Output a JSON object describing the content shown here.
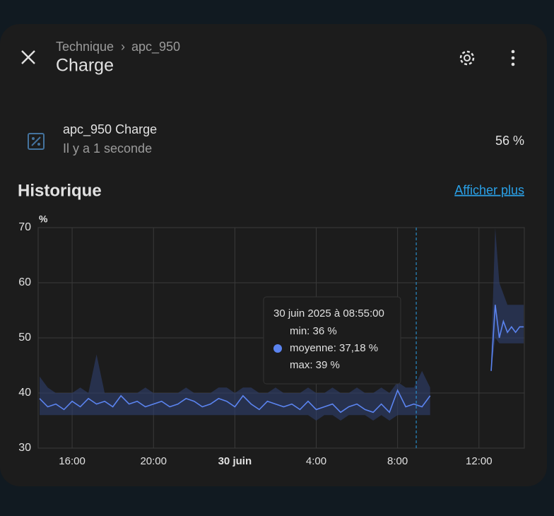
{
  "header": {
    "breadcrumb": [
      "Technique",
      "apc_950"
    ],
    "title": "Charge"
  },
  "entity": {
    "name": "apc_950 Charge",
    "last_changed": "Il y a 1 seconde",
    "state": "56 %"
  },
  "history": {
    "title": "Historique",
    "link": "Afficher plus"
  },
  "chart_data": {
    "type": "line",
    "ylabel": "%",
    "xlim": [
      14.33,
      38.23
    ],
    "xticks": [
      {
        "value": 16,
        "label": "16:00"
      },
      {
        "value": 20,
        "label": "20:00"
      },
      {
        "value": 24,
        "label": "30 juin"
      },
      {
        "value": 28,
        "label": "4:00"
      },
      {
        "value": 32,
        "label": "8:00"
      },
      {
        "value": 36,
        "label": "12:00"
      }
    ],
    "ylim": [
      30,
      70
    ],
    "yticks": [
      30,
      40,
      50,
      60,
      70
    ],
    "grid": true,
    "x": [
      14.4,
      14.8,
      15.2,
      15.6,
      16.0,
      16.4,
      16.8,
      17.2,
      17.6,
      18.0,
      18.4,
      18.8,
      19.2,
      19.6,
      20.0,
      20.4,
      20.8,
      21.2,
      21.6,
      22.0,
      22.4,
      22.8,
      23.2,
      23.6,
      24.0,
      24.4,
      24.8,
      25.2,
      25.6,
      26.0,
      26.4,
      26.8,
      27.2,
      27.6,
      28.0,
      28.4,
      28.8,
      29.2,
      29.6,
      30.0,
      30.4,
      30.8,
      31.2,
      31.6,
      32.0,
      32.4,
      32.8,
      33.2,
      33.6,
      35.0,
      36.6,
      36.8,
      37.0,
      37.2,
      37.4,
      37.6,
      37.8,
      38.0,
      38.2
    ],
    "series": [
      {
        "name": "moyenne",
        "color": "#5b84f0",
        "values": [
          39,
          37.5,
          38,
          37,
          38.5,
          37.5,
          39,
          38,
          38.5,
          37.5,
          39.5,
          38,
          38.5,
          37.5,
          38,
          38.5,
          37.5,
          38,
          39,
          38.5,
          37.5,
          38,
          39,
          38.5,
          37.5,
          39.5,
          38,
          37,
          38.5,
          38,
          37.5,
          38,
          37,
          38.5,
          37,
          37.5,
          38,
          36.5,
          37.5,
          38,
          37,
          36.5,
          38,
          36.5,
          40.5,
          37.5,
          38,
          37.5,
          39.5,
          null,
          44,
          56,
          50,
          53,
          51,
          52,
          51,
          52,
          52
        ]
      },
      {
        "name": "min",
        "color": "#2e3f6e",
        "values": [
          36,
          36,
          36,
          36,
          36,
          36,
          36,
          36,
          36,
          36,
          36,
          36,
          36,
          36,
          36,
          36,
          36,
          36,
          36,
          36,
          36,
          36,
          36,
          36,
          36,
          36,
          36,
          36,
          36,
          36,
          36,
          36,
          36,
          36,
          35,
          36,
          36,
          35,
          36,
          36,
          36,
          35,
          36,
          35,
          36,
          36,
          36,
          36,
          36,
          null,
          44,
          50,
          49,
          49,
          49,
          49,
          49,
          49,
          49
        ]
      },
      {
        "name": "max",
        "color": "#2e3f6e",
        "values": [
          43,
          41,
          40,
          40,
          40,
          41,
          40,
          47,
          40,
          40,
          40,
          40,
          40,
          41,
          40,
          40,
          40,
          40,
          41,
          40,
          40,
          40,
          41,
          41,
          40,
          41,
          41,
          40,
          40,
          41,
          40,
          40,
          40,
          41,
          40,
          40,
          41,
          40,
          40,
          41,
          40,
          40,
          41,
          40,
          42,
          41,
          41,
          44,
          41,
          null,
          47,
          70,
          60,
          58,
          56,
          56,
          56,
          56,
          56
        ]
      }
    ],
    "cursor_x": 32.917,
    "tooltip": {
      "title": "30 juin 2025 à 08:55:00",
      "lines": [
        "min: 36 %",
        "moyenne: 37,18 %",
        "max: 39 %"
      ]
    }
  }
}
